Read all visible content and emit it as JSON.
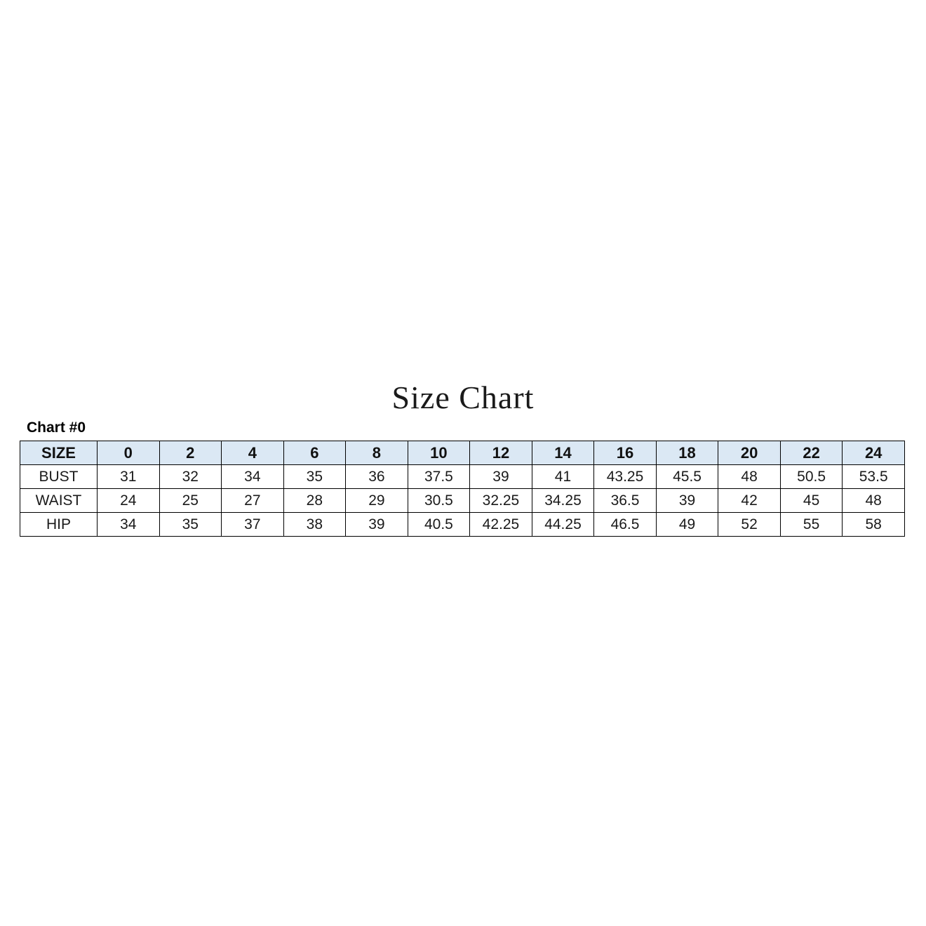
{
  "page": {
    "title": "Size Chart",
    "chart_label": "Chart #0"
  },
  "colors": {
    "header_bg": "#dbe8f4",
    "border": "#000000",
    "text": "#1a1a1a",
    "background": "#ffffff"
  },
  "chart_data": {
    "type": "table",
    "title": "Size Chart",
    "subtitle": "Chart #0",
    "columns": [
      "SIZE",
      "0",
      "2",
      "4",
      "6",
      "8",
      "10",
      "12",
      "14",
      "16",
      "18",
      "20",
      "22",
      "24"
    ],
    "rows": [
      {
        "label": "BUST",
        "values": [
          "31",
          "32",
          "34",
          "35",
          "36",
          "37.5",
          "39",
          "41",
          "43.25",
          "45.5",
          "48",
          "50.5",
          "53.5"
        ]
      },
      {
        "label": "WAIST",
        "values": [
          "24",
          "25",
          "27",
          "28",
          "29",
          "30.5",
          "32.25",
          "34.25",
          "36.5",
          "39",
          "42",
          "45",
          "48"
        ]
      },
      {
        "label": "HIP",
        "values": [
          "34",
          "35",
          "37",
          "38",
          "39",
          "40.5",
          "42.25",
          "44.25",
          "46.5",
          "49",
          "52",
          "55",
          "58"
        ]
      }
    ]
  }
}
